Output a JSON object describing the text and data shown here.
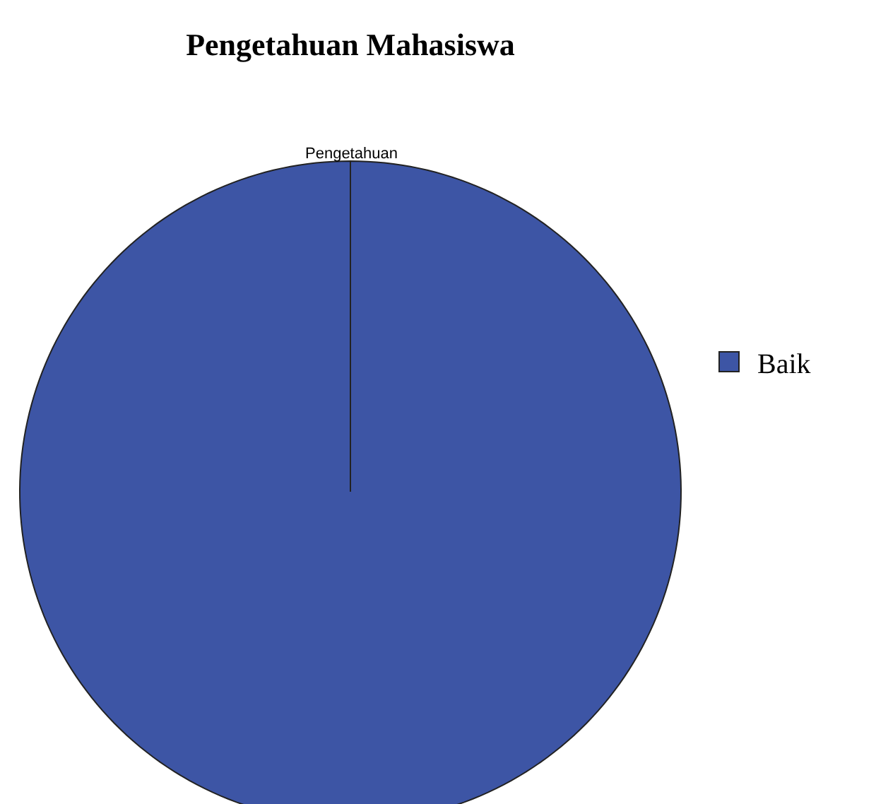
{
  "chart_data": {
    "type": "pie",
    "title": "Pengetahuan Mahasiswa",
    "subtitle": "Pengetahuan",
    "categories": [
      "Baik"
    ],
    "values": [
      100
    ],
    "colors": [
      "#3d55a5"
    ],
    "legend": "right"
  }
}
